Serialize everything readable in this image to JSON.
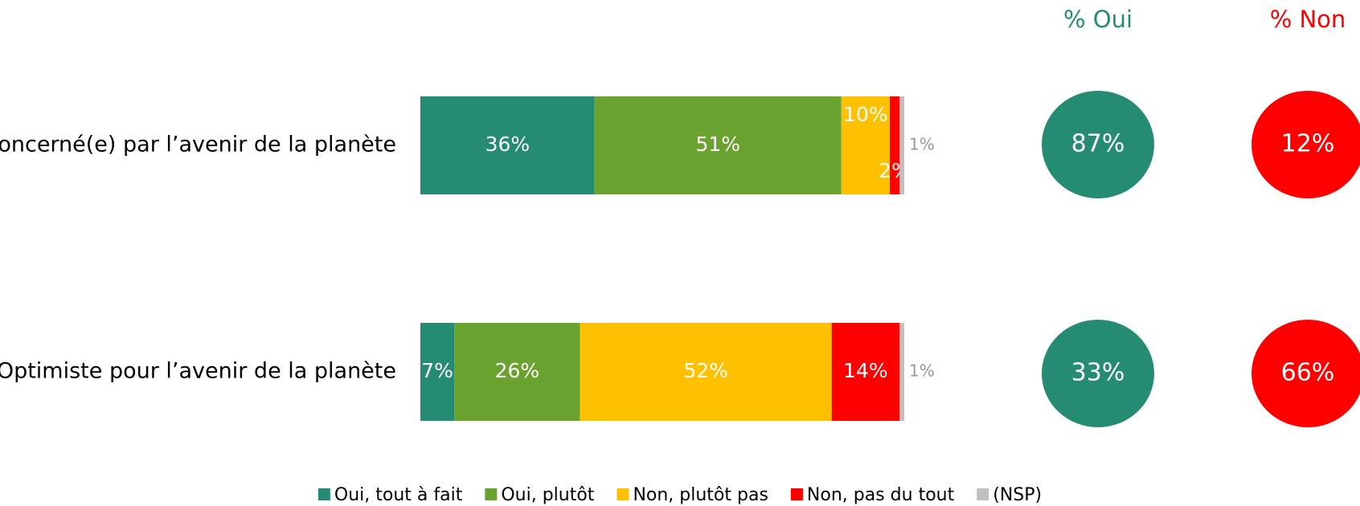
{
  "chart_data": {
    "type": "bar",
    "orientation": "horizontal",
    "stacked": true,
    "categories": [
      "Concerné(e) par l’avenir de la planète",
      "Optimiste pour l’avenir de la planète"
    ],
    "series": [
      {
        "name": "Oui, tout à fait",
        "color": "#268b73",
        "values": [
          36,
          7
        ],
        "value_labels": [
          "36%",
          "7%"
        ]
      },
      {
        "name": "Oui, plutôt",
        "color": "#6aa22f",
        "values": [
          51,
          26
        ],
        "value_labels": [
          "51%",
          "26%"
        ]
      },
      {
        "name": "Non, plutôt pas",
        "color": "#ffc000",
        "values": [
          10,
          52
        ],
        "value_labels": [
          "10%",
          "52%"
        ]
      },
      {
        "name": "Non, pas du tout",
        "color": "#ff0000",
        "values": [
          2,
          14
        ],
        "value_labels": [
          "2%",
          "14%"
        ]
      },
      {
        "name": "(NSP)",
        "color": "#c0c0c0",
        "values": [
          1,
          1
        ],
        "value_labels": [
          "1%",
          "1%"
        ]
      }
    ],
    "xlim": [
      0,
      100
    ],
    "legend": "bottom",
    "summary": [
      {
        "name": "% Oui",
        "color": "#268b73",
        "values": [
          87,
          33
        ],
        "value_labels": [
          "87%",
          "33%"
        ]
      },
      {
        "name": "% Non",
        "color": "#ff0000",
        "values": [
          12,
          66
        ],
        "value_labels": [
          "12%",
          "66%"
        ]
      }
    ]
  }
}
